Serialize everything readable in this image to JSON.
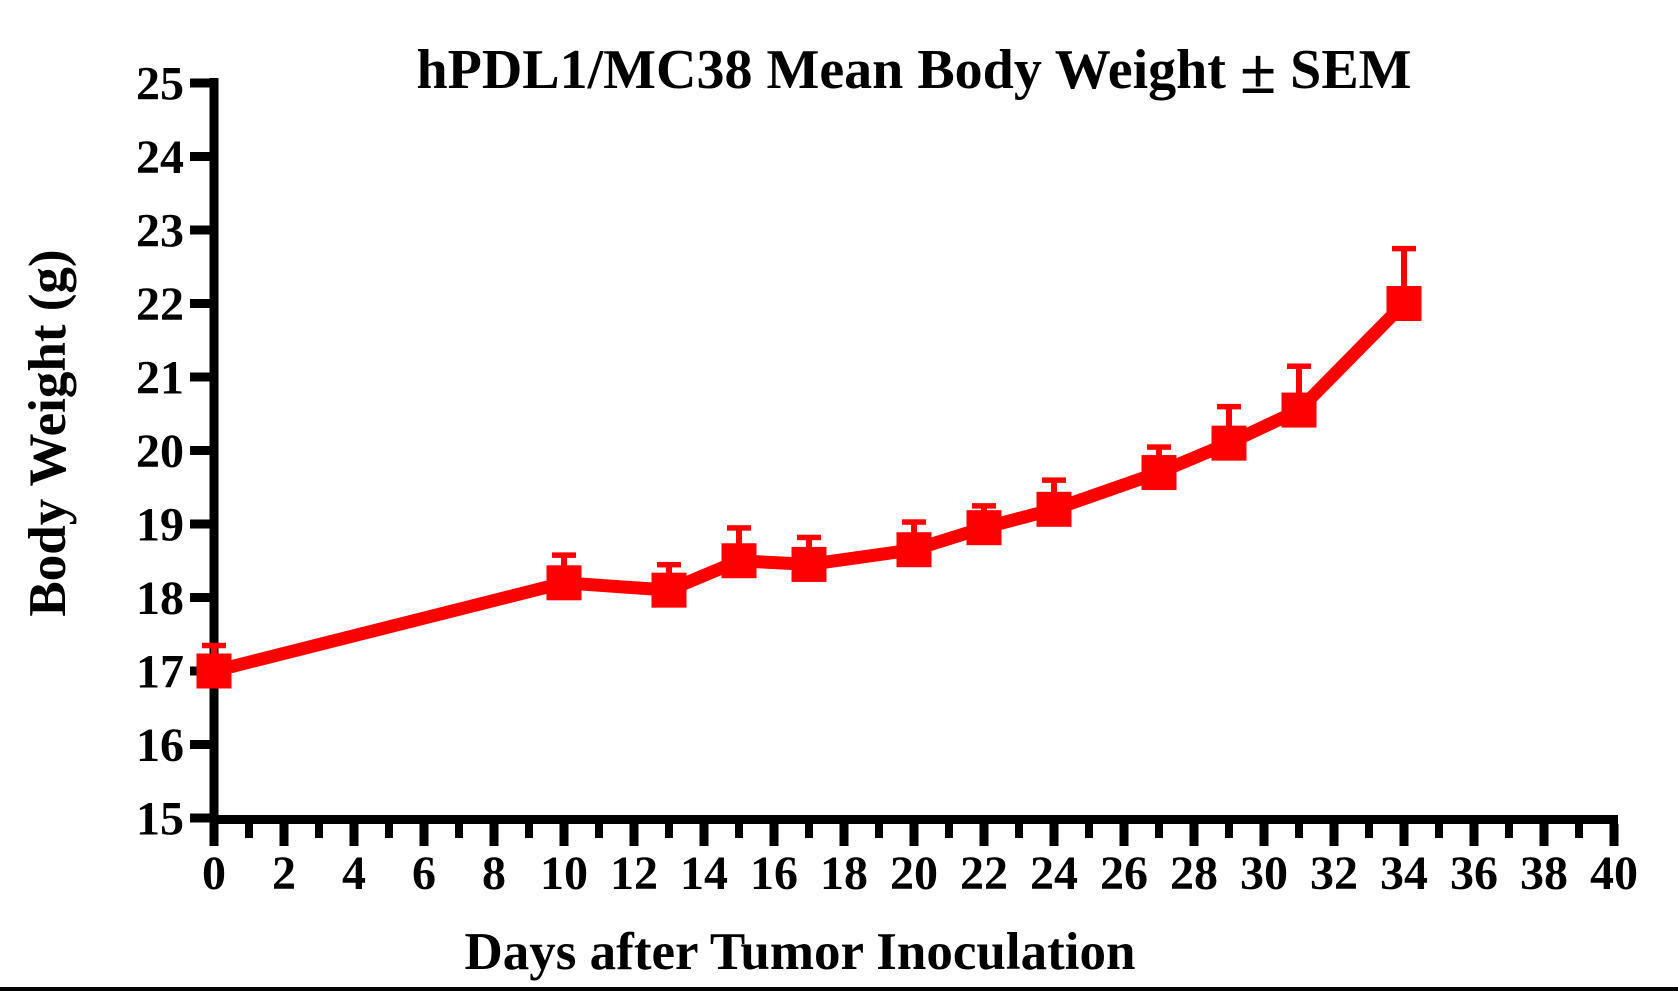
{
  "page": {
    "background_color": "#ffffff",
    "bottom_rule_color": "#000000"
  },
  "chart_data": {
    "type": "line",
    "title": "hPDL1/MC38 Mean Body Weight ± SEM",
    "title_parts": {
      "prefix": "hPDL1/MC38 Mean Body Weight",
      "pm": "±",
      "suffix": "SEM"
    },
    "xlabel": "Days after Tumor Inoculation",
    "ylabel": "Body Weight (g)",
    "x": [
      0,
      10,
      13,
      15,
      17,
      20,
      22,
      24,
      27,
      29,
      31,
      34
    ],
    "series": [
      {
        "name": "hPDL1/MC38 mean body weight",
        "values": [
          17.0,
          18.2,
          18.1,
          18.5,
          18.45,
          18.65,
          18.95,
          19.2,
          19.7,
          20.1,
          20.55,
          22.0
        ],
        "sem_upper": [
          0.35,
          0.38,
          0.35,
          0.45,
          0.37,
          0.38,
          0.3,
          0.4,
          0.35,
          0.5,
          0.6,
          0.75
        ],
        "color": "#ff0000",
        "marker": "square"
      }
    ],
    "xlim": [
      0,
      40
    ],
    "ylim": [
      15,
      25
    ],
    "xticks_major": [
      0,
      2,
      4,
      6,
      8,
      10,
      12,
      14,
      16,
      18,
      20,
      22,
      24,
      26,
      28,
      30,
      32,
      34,
      36,
      38,
      40
    ],
    "xticks_minor": [
      1,
      3,
      5,
      7,
      9,
      11,
      13,
      15,
      17,
      19,
      21,
      23,
      25,
      27,
      29,
      31,
      33,
      35,
      37,
      39
    ],
    "yticks": [
      15,
      16,
      17,
      18,
      19,
      20,
      21,
      22,
      23,
      24,
      25
    ],
    "error_bars": "upper_only_with_caps",
    "grid": false,
    "legend": "none",
    "axis_color": "#000000"
  }
}
